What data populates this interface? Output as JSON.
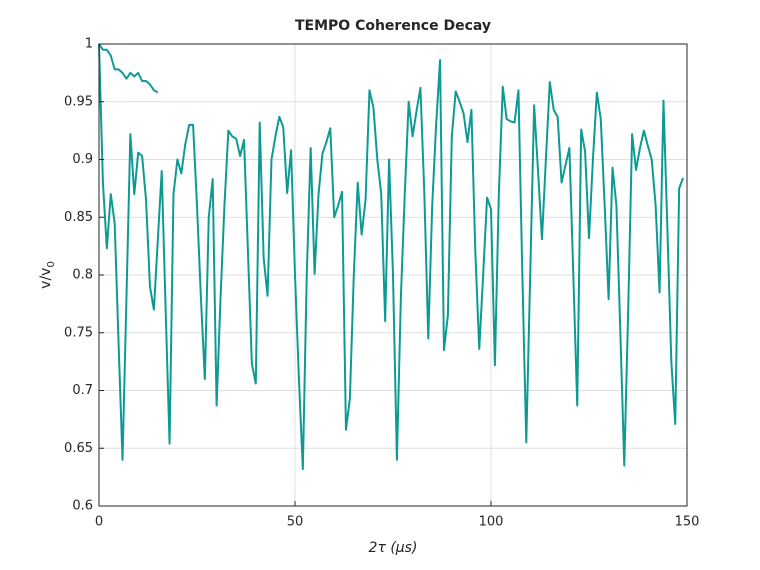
{
  "chart_data": {
    "type": "line",
    "title": "TEMPO Coherence Decay",
    "x_label": "2τ (μs)",
    "y_label": "v/v",
    "y_label_subscript": "0",
    "xlim": [
      0,
      150
    ],
    "xticks": [
      0,
      50,
      100,
      150
    ],
    "ylim": [
      0.6,
      1
    ],
    "yticks": [
      0.6,
      0.65,
      0.7,
      0.75,
      0.8,
      0.85,
      0.9,
      0.95,
      1
    ],
    "grid": true,
    "series": [
      {
        "color": "#12999a",
        "x": [
          0,
          1,
          2,
          3,
          4,
          5,
          6,
          7,
          8,
          9,
          10,
          11,
          12,
          13,
          14,
          15
        ],
        "values": [
          1.0,
          0.995,
          0.995,
          0.99,
          0.978,
          0.978,
          0.975,
          0.97,
          0.975,
          0.972,
          0.975,
          0.968,
          0.968,
          0.965,
          0.96,
          0.958
        ]
      },
      {
        "color": "#0e9a94",
        "x": [
          0,
          1,
          2,
          3,
          4,
          5,
          6,
          7,
          8,
          9,
          10,
          11,
          12,
          13,
          14,
          15,
          16,
          17,
          18,
          19,
          20,
          21,
          22,
          23,
          24,
          25,
          26,
          27,
          28,
          29,
          30,
          31,
          32,
          33,
          34,
          35,
          36,
          37,
          38,
          39,
          40,
          41,
          42,
          43,
          44,
          45,
          46,
          47,
          48,
          49,
          50,
          51,
          52,
          53,
          54,
          55,
          56,
          57,
          58,
          59,
          60,
          61,
          62,
          63,
          64,
          65,
          66,
          67,
          68,
          69,
          70,
          71,
          72,
          73,
          74,
          75,
          76,
          77,
          78,
          79,
          80,
          81,
          82,
          83,
          84,
          85,
          86,
          87,
          88,
          89,
          90,
          91,
          92,
          93,
          94,
          95,
          96,
          97,
          98,
          99,
          100,
          101,
          102,
          103,
          104,
          105,
          106,
          107,
          108,
          109,
          110,
          111,
          112,
          113,
          114,
          115,
          116,
          117,
          118,
          119,
          120,
          121,
          122,
          123,
          124,
          125,
          126,
          127,
          128,
          129,
          130,
          131,
          132,
          133,
          134,
          135,
          136,
          137,
          138,
          139,
          140,
          141,
          142,
          143,
          144,
          145,
          146,
          147,
          148,
          149
        ],
        "values": [
          1.0,
          0.88,
          0.823,
          0.87,
          0.845,
          0.74,
          0.64,
          0.78,
          0.922,
          0.87,
          0.906,
          0.903,
          0.865,
          0.79,
          0.77,
          0.83,
          0.89,
          0.77,
          0.654,
          0.87,
          0.9,
          0.888,
          0.913,
          0.93,
          0.93,
          0.86,
          0.78,
          0.71,
          0.85,
          0.883,
          0.687,
          0.78,
          0.86,
          0.925,
          0.92,
          0.918,
          0.903,
          0.917,
          0.82,
          0.723,
          0.706,
          0.932,
          0.815,
          0.782,
          0.9,
          0.92,
          0.937,
          0.928,
          0.871,
          0.908,
          0.8,
          0.71,
          0.632,
          0.8,
          0.91,
          0.801,
          0.87,
          0.905,
          0.915,
          0.927,
          0.85,
          0.86,
          0.872,
          0.666,
          0.693,
          0.8,
          0.88,
          0.835,
          0.865,
          0.96,
          0.945,
          0.9,
          0.87,
          0.76,
          0.9,
          0.8,
          0.64,
          0.78,
          0.87,
          0.95,
          0.92,
          0.942,
          0.962,
          0.87,
          0.745,
          0.86,
          0.93,
          0.986,
          0.735,
          0.765,
          0.92,
          0.959,
          0.95,
          0.94,
          0.915,
          0.943,
          0.82,
          0.736,
          0.8,
          0.867,
          0.857,
          0.722,
          0.87,
          0.963,
          0.935,
          0.933,
          0.932,
          0.96,
          0.8,
          0.655,
          0.8,
          0.947,
          0.89,
          0.831,
          0.9,
          0.967,
          0.943,
          0.937,
          0.88,
          0.895,
          0.91,
          0.8,
          0.687,
          0.926,
          0.907,
          0.832,
          0.9,
          0.958,
          0.935,
          0.86,
          0.779,
          0.893,
          0.86,
          0.75,
          0.635,
          0.77,
          0.922,
          0.891,
          0.91,
          0.925,
          0.912,
          0.9,
          0.86,
          0.785,
          0.951,
          0.84,
          0.725,
          0.671,
          0.875,
          0.884
        ]
      }
    ]
  }
}
